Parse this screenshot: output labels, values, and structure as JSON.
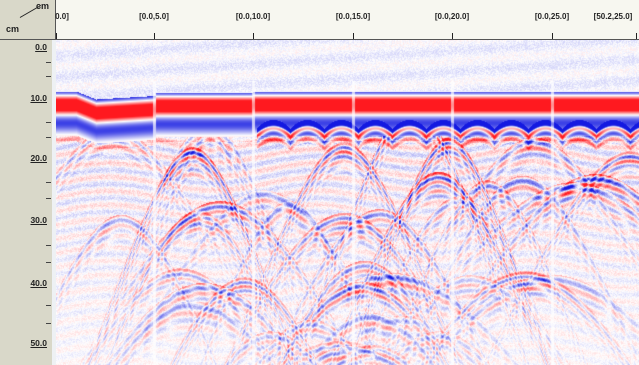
{
  "corner": {
    "unit_horizontal": "cm",
    "unit_vertical": "cm"
  },
  "top_ruler": {
    "labels": [
      "0.0]",
      "[0.0,5.0]",
      "[0.0,10.0]",
      "[0.0,15.0]",
      "[0.0,20.0]",
      "[0.0,25.0]",
      "[50.2,25.0]"
    ]
  },
  "left_ruler": {
    "labels": [
      "0.0",
      "10.0",
      "20.0",
      "30.0",
      "40.0",
      "50.0"
    ]
  },
  "colors": {
    "ruler_bg": "#d9d8c9",
    "top_ruler_bg": "#f7f7f0",
    "positive_amplitude": "#e8262a",
    "negative_amplitude": "#1a1ee0",
    "zero_amplitude": "#ffffff"
  },
  "radargram": {
    "colormap": "red-white-blue",
    "description_icon": "gpr-profile-image"
  }
}
